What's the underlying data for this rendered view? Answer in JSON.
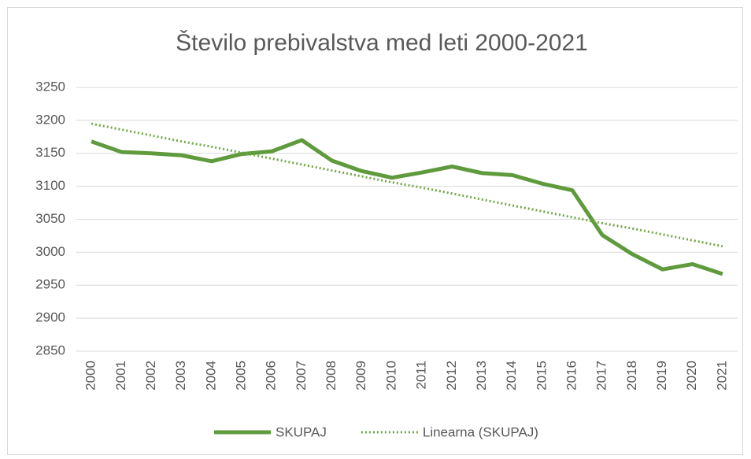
{
  "chart_data": {
    "type": "line",
    "title": "Število prebivalstva med leti 2000-2021",
    "categories": [
      "2000",
      "2001",
      "2002",
      "2003",
      "2004",
      "2005",
      "2006",
      "2007",
      "2008",
      "2009",
      "2010",
      "2011",
      "2012",
      "2013",
      "2014",
      "2015",
      "2016",
      "2017",
      "2018",
      "2019",
      "2020",
      "2021"
    ],
    "series": [
      {
        "name": "SKUPAJ",
        "color": "#5f9b3c",
        "style": "solid",
        "values": [
          3168,
          3152,
          3150,
          3147,
          3138,
          3149,
          3153,
          3170,
          3139,
          3123,
          3113,
          3121,
          3130,
          3120,
          3117,
          3104,
          3094,
          3026,
          2997,
          2974,
          2982,
          2967
        ]
      },
      {
        "name": "Linearna (SKUPAJ)",
        "color": "#70a845",
        "style": "dotted",
        "values": [
          3195,
          3186,
          3177,
          3168,
          3160,
          3151,
          3142,
          3133,
          3124,
          3115,
          3106,
          3098,
          3089,
          3080,
          3071,
          3062,
          3053,
          3044,
          3036,
          3027,
          3018,
          3009
        ]
      }
    ],
    "ylim": [
      2850,
      3250
    ],
    "yticks": [
      2850,
      2900,
      2950,
      3000,
      3050,
      3100,
      3150,
      3200,
      3250
    ],
    "grid": true,
    "legend": "bottom"
  }
}
